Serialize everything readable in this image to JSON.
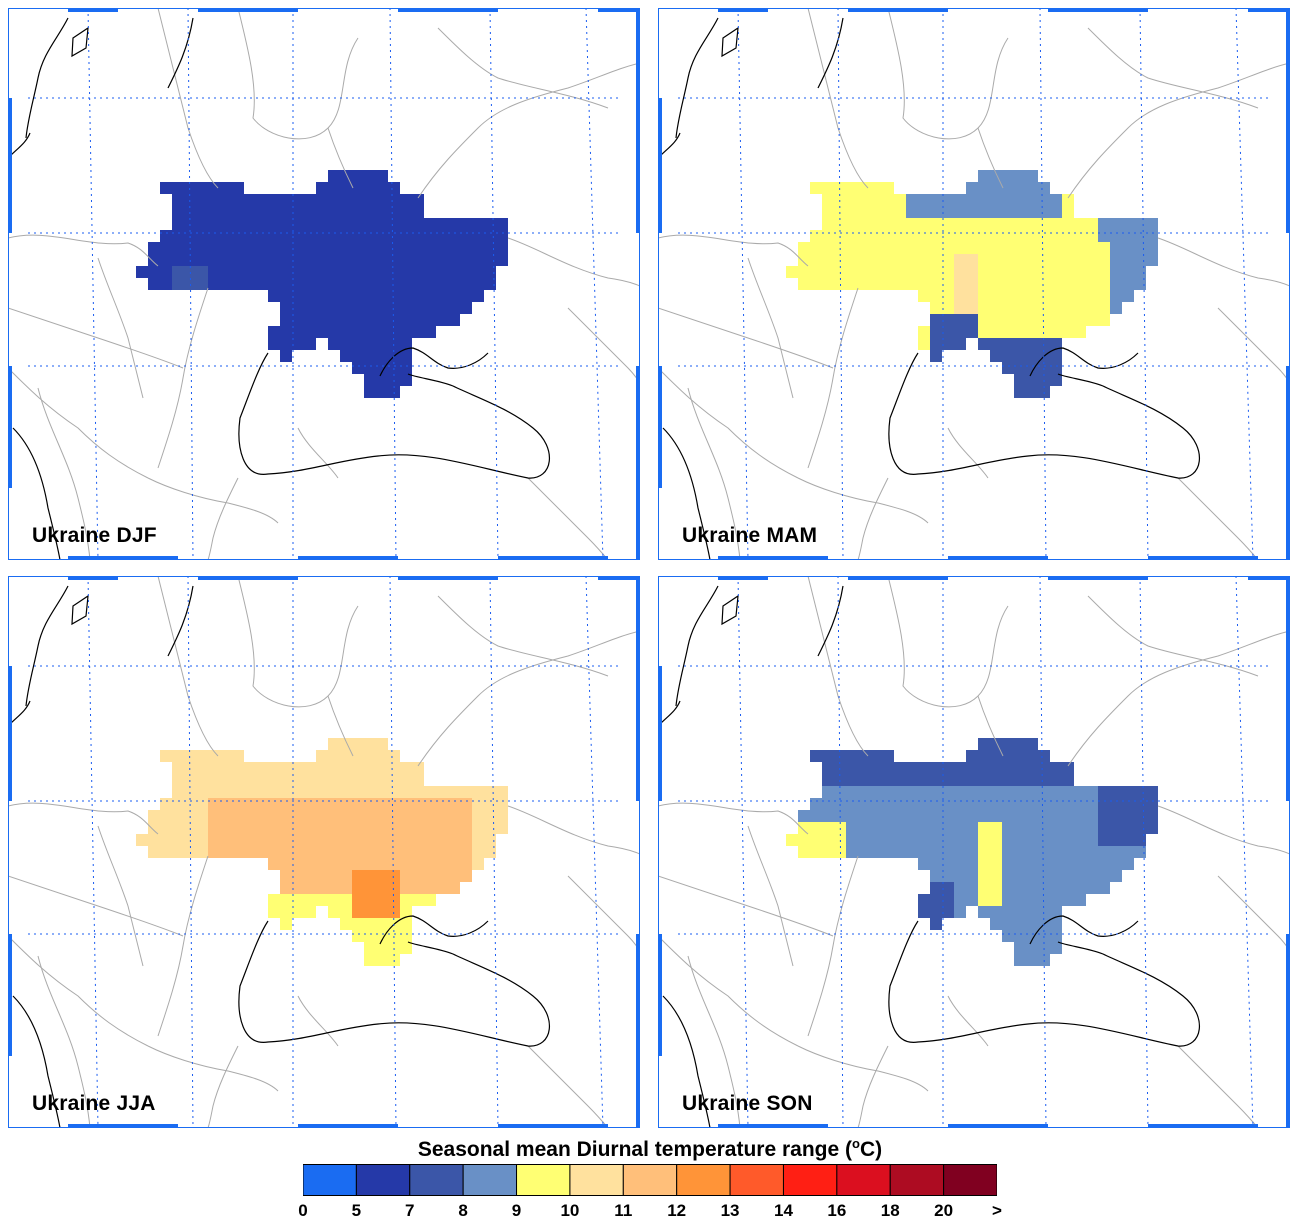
{
  "panels": [
    {
      "id": "djf",
      "label": "Ukraine DJF"
    },
    {
      "id": "mam",
      "label": "Ukraine MAM"
    },
    {
      "id": "jja",
      "label": "Ukraine JJA"
    },
    {
      "id": "son",
      "label": "Ukraine SON"
    }
  ],
  "colorbar": {
    "title_main": "Seasonal mean Diurnal temperature range (",
    "title_sup": "o",
    "title_end": "C)",
    "ticks": [
      "0",
      "5",
      "7",
      "8",
      "9",
      "10",
      "11",
      "12",
      "13",
      "14",
      "16",
      "18",
      "20",
      ">"
    ],
    "colors": [
      "#1a6cf2",
      "#2539a8",
      "#3b56a8",
      "#6990c6",
      "#ffff73",
      "#ffe19e",
      "#ffbf7a",
      "#ff9438",
      "#ff5a2a",
      "#ff1f14",
      "#db0f1f",
      "#ad0c22",
      "#800020"
    ]
  },
  "map_style": {
    "border_color": "#aaaaaa",
    "coast_color": "#000000",
    "grid_color": "#1a5cf0",
    "frame_color": "#1a6cf2"
  }
}
